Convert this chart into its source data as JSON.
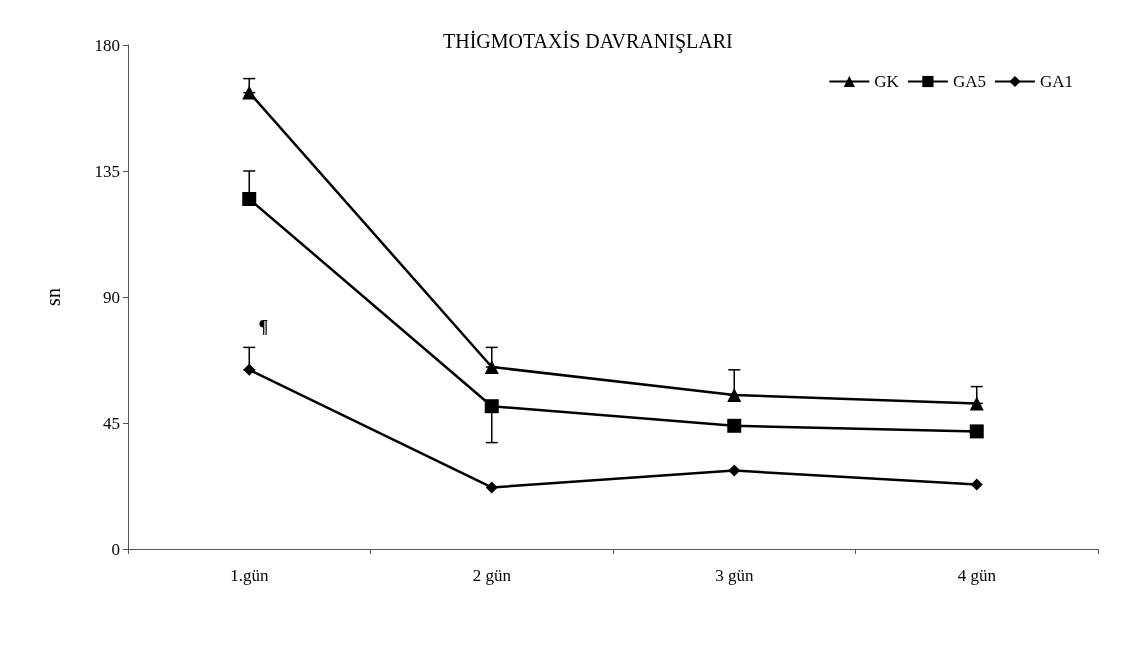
{
  "chart_data": {
    "type": "line",
    "title": "THİGMOTAXİS DAVRANIŞLARI",
    "ylabel": "sn",
    "categories": [
      "1.gün",
      "2 gün",
      "3 gün",
      "4 gün"
    ],
    "series": [
      {
        "name": "GK",
        "color": "#000000",
        "marker": "triangle",
        "values": [
          163,
          65,
          55,
          52
        ],
        "errors": [
          [
            163,
            168
          ],
          [
            65,
            72
          ],
          [
            55,
            64
          ],
          [
            52,
            58
          ]
        ]
      },
      {
        "name": "GA5",
        "color": "#000000",
        "marker": "square",
        "values": [
          125,
          51,
          44,
          42
        ],
        "errors": [
          [
            125,
            135
          ],
          [
            38,
            51
          ],
          null,
          null
        ]
      },
      {
        "name": "GA1",
        "color": "#000000",
        "marker": "diamond",
        "values": [
          64,
          22,
          28,
          23
        ],
        "errors": [
          [
            64,
            72
          ],
          null,
          null,
          null
        ]
      }
    ],
    "ylim": [
      0,
      180
    ],
    "yticks": [
      0,
      45,
      90,
      135,
      180
    ],
    "grid": false,
    "legend": "top right",
    "line_style": "solid",
    "annotations": [
      "¶"
    ]
  }
}
